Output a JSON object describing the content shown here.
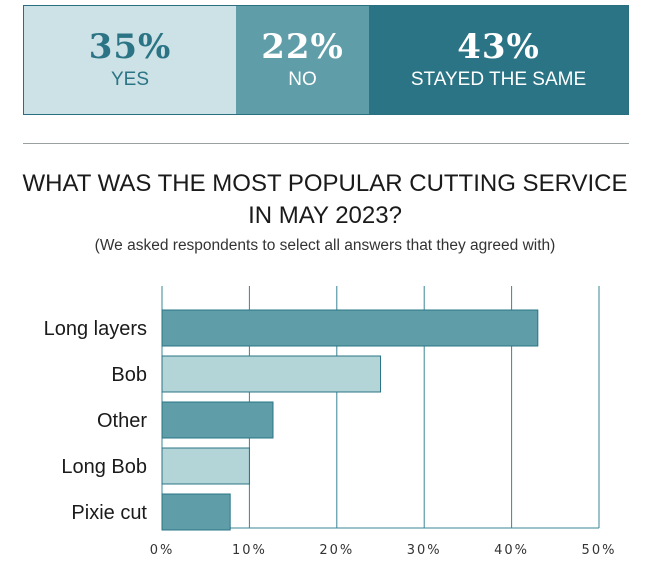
{
  "stats": [
    {
      "value": "35%",
      "label": "YES",
      "color": "#cde2e6"
    },
    {
      "value": "22%",
      "label": "NO",
      "color": "#5f9ea8"
    },
    {
      "value": "43%",
      "label": "STAYED THE SAME",
      "color": "#2a7485"
    }
  ],
  "chart_data": {
    "type": "bar",
    "orientation": "horizontal",
    "title": "WHAT WAS THE MOST POPULAR CUTTING SERVICE IN MAY 2023?",
    "title_line1": "WHAT WAS THE MOST POPULAR CUTTING SERVICE",
    "title_line2": "IN MAY 2023?",
    "subtitle": "(We asked respondents to select all answers that they agreed with)",
    "categories": [
      "Long layers",
      "Bob",
      "Other",
      "Long Bob",
      "Pixie cut"
    ],
    "values": [
      43,
      25,
      12.7,
      10,
      7.8
    ],
    "bar_colors": [
      "#5f9ea8",
      "#b4d5d8",
      "#5f9ea8",
      "#b4d5d8",
      "#5f9ea8"
    ],
    "bar_border": "#2a7485",
    "gridline_color": "#3a8494",
    "xlim": [
      0,
      50
    ],
    "xticks": [
      0,
      10,
      20,
      30,
      40,
      50
    ],
    "xtick_labels": [
      "0%",
      "10%",
      "20%",
      "30%",
      "40%",
      "50%"
    ],
    "grid": true
  }
}
